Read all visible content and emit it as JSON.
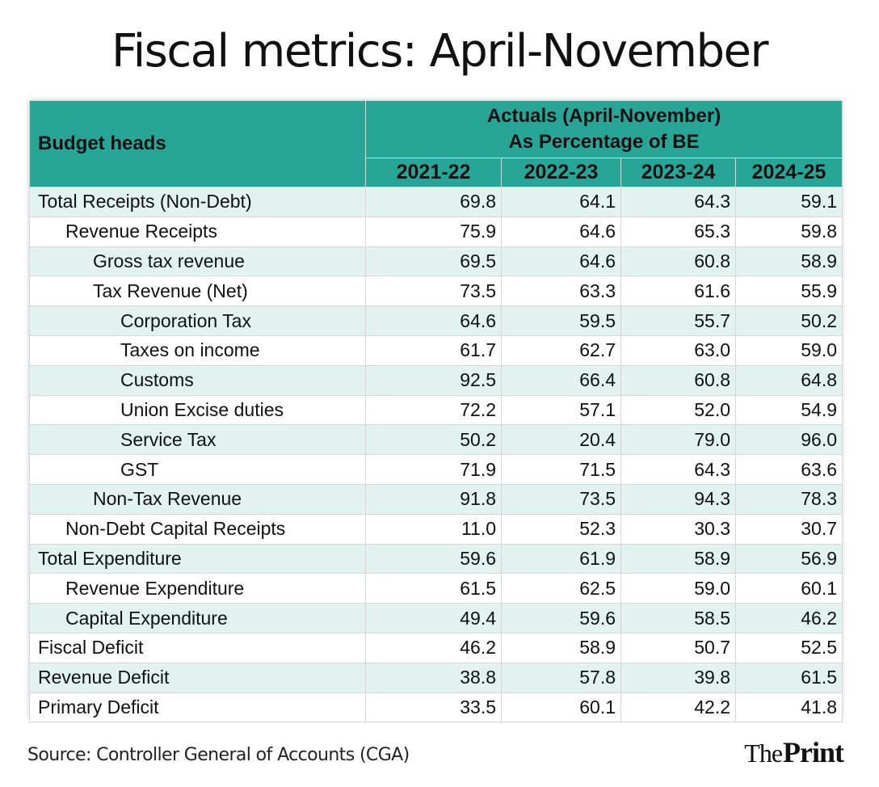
{
  "title": "Fiscal metrics: April-November",
  "chart_data": {
    "type": "table",
    "title": "Fiscal metrics: April-November",
    "row_header_label": "Budget heads",
    "group_header": [
      "Actuals (April-November)",
      "As Percentage of BE"
    ],
    "columns": [
      "2021-22",
      "2022-23",
      "2023-24",
      "2024-25"
    ],
    "rows": [
      {
        "label": "Total Receipts (Non-Debt)",
        "level": 0,
        "values": [
          "69.8",
          "64.1",
          "64.3",
          "59.1"
        ]
      },
      {
        "label": "Revenue Receipts",
        "level": 1,
        "values": [
          "75.9",
          "64.6",
          "65.3",
          "59.8"
        ]
      },
      {
        "label": "Gross tax revenue",
        "level": 2,
        "values": [
          "69.5",
          "64.6",
          "60.8",
          "58.9"
        ]
      },
      {
        "label": "Tax Revenue (Net)",
        "level": 2,
        "values": [
          "73.5",
          "63.3",
          "61.6",
          "55.9"
        ]
      },
      {
        "label": "Corporation Tax",
        "level": 3,
        "values": [
          "64.6",
          "59.5",
          "55.7",
          "50.2"
        ]
      },
      {
        "label": "Taxes on income",
        "level": 3,
        "values": [
          "61.7",
          "62.7",
          "63.0",
          "59.0"
        ]
      },
      {
        "label": "Customs",
        "level": 3,
        "values": [
          "92.5",
          "66.4",
          "60.8",
          "64.8"
        ]
      },
      {
        "label": "Union Excise duties",
        "level": 3,
        "values": [
          "72.2",
          "57.1",
          "52.0",
          "54.9"
        ]
      },
      {
        "label": "Service Tax",
        "level": 3,
        "values": [
          "50.2",
          "20.4",
          "79.0",
          "96.0"
        ]
      },
      {
        "label": "GST",
        "level": 3,
        "values": [
          "71.9",
          "71.5",
          "64.3",
          "63.6"
        ]
      },
      {
        "label": "Non-Tax Revenue",
        "level": 2,
        "values": [
          "91.8",
          "73.5",
          "94.3",
          "78.3"
        ]
      },
      {
        "label": "Non-Debt Capital Receipts",
        "level": 1,
        "values": [
          "11.0",
          "52.3",
          "30.3",
          "30.7"
        ]
      },
      {
        "label": "Total Expenditure",
        "level": 0,
        "values": [
          "59.6",
          "61.9",
          "58.9",
          "56.9"
        ]
      },
      {
        "label": "Revenue Expenditure",
        "level": 1,
        "values": [
          "61.5",
          "62.5",
          "59.0",
          "60.1"
        ]
      },
      {
        "label": "Capital Expenditure",
        "level": 1,
        "values": [
          "49.4",
          "59.6",
          "58.5",
          "46.2"
        ]
      },
      {
        "label": "Fiscal Deficit",
        "level": 0,
        "values": [
          "46.2",
          "58.9",
          "50.7",
          "52.5"
        ]
      },
      {
        "label": "Revenue Deficit",
        "level": 0,
        "values": [
          "38.8",
          "57.8",
          "39.8",
          "61.5"
        ]
      },
      {
        "label": "Primary Deficit",
        "level": 0,
        "values": [
          "33.5",
          "60.1",
          "42.2",
          "41.8"
        ]
      }
    ]
  },
  "source": "Source: Controller General of Accounts (CGA)",
  "brand": {
    "prefix": "The",
    "name": "Print"
  },
  "colors": {
    "header": "#27a697",
    "shade": "#e1f2ef",
    "plain": "#ffffff"
  }
}
